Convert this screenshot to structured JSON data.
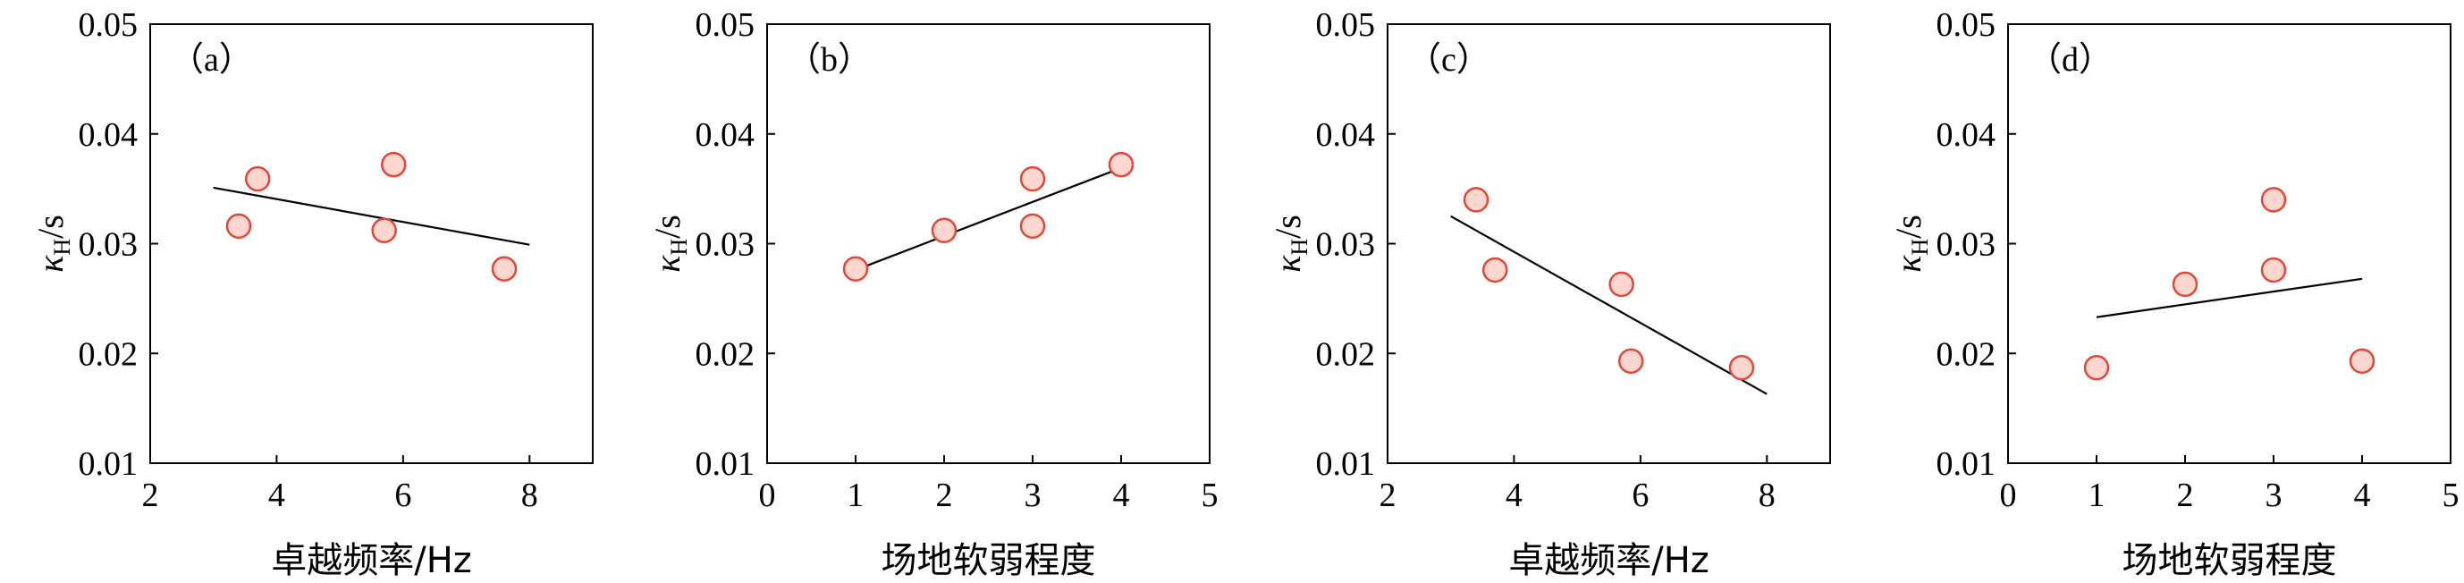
{
  "chart_data": [
    {
      "type": "scatter",
      "panel_label": "（a）",
      "xlabel": "卓越频率/Hz",
      "ylabel": {
        "symbol": "κ",
        "sub": "H",
        "unit": "/s"
      },
      "xlim": [
        2,
        9
      ],
      "ylim": [
        0.01,
        0.05
      ],
      "xticks": [
        2,
        4,
        6,
        8
      ],
      "xtick_labels": [
        "2",
        "4",
        "6",
        "8"
      ],
      "yticks": [
        0.01,
        0.02,
        0.03,
        0.04,
        0.05
      ],
      "ytick_labels": [
        "0.01",
        "0.02",
        "0.03",
        "0.04",
        "0.05"
      ],
      "points": [
        {
          "x": 3.4,
          "y": 0.0316
        },
        {
          "x": 3.7,
          "y": 0.0359
        },
        {
          "x": 5.7,
          "y": 0.0312
        },
        {
          "x": 5.85,
          "y": 0.0372
        },
        {
          "x": 7.6,
          "y": 0.0277
        }
      ],
      "fit_line": {
        "x": [
          3,
          8
        ],
        "y": [
          0.0351,
          0.0299
        ]
      }
    },
    {
      "type": "scatter",
      "panel_label": "（b）",
      "xlabel": "场地软弱程度",
      "ylabel": {
        "symbol": "κ",
        "sub": "H",
        "unit": "/s"
      },
      "xlim": [
        0,
        5
      ],
      "ylim": [
        0.01,
        0.05
      ],
      "xticks": [
        0,
        1,
        2,
        3,
        4,
        5
      ],
      "xtick_labels": [
        "0",
        "1",
        "2",
        "3",
        "4",
        "5"
      ],
      "yticks": [
        0.01,
        0.02,
        0.03,
        0.04,
        0.05
      ],
      "ytick_labels": [
        "0.01",
        "0.02",
        "0.03",
        "0.04",
        "0.05"
      ],
      "points": [
        {
          "x": 1,
          "y": 0.0277
        },
        {
          "x": 2,
          "y": 0.0312
        },
        {
          "x": 3,
          "y": 0.0316
        },
        {
          "x": 3,
          "y": 0.0359
        },
        {
          "x": 4,
          "y": 0.0372
        }
      ],
      "fit_line": {
        "x": [
          1,
          4
        ],
        "y": [
          0.0276,
          0.0369
        ]
      }
    },
    {
      "type": "scatter",
      "panel_label": "（c）",
      "xlabel": "卓越频率/Hz",
      "ylabel": {
        "symbol": "κ",
        "sub": "H",
        "unit": "/s"
      },
      "xlim": [
        2,
        9
      ],
      "ylim": [
        0.01,
        0.05
      ],
      "xticks": [
        2,
        4,
        6,
        8
      ],
      "xtick_labels": [
        "2",
        "4",
        "6",
        "8"
      ],
      "yticks": [
        0.01,
        0.02,
        0.03,
        0.04,
        0.05
      ],
      "ytick_labels": [
        "0.01",
        "0.02",
        "0.03",
        "0.04",
        "0.05"
      ],
      "points": [
        {
          "x": 3.4,
          "y": 0.034
        },
        {
          "x": 3.7,
          "y": 0.0276
        },
        {
          "x": 5.7,
          "y": 0.0263
        },
        {
          "x": 5.85,
          "y": 0.0193
        },
        {
          "x": 7.6,
          "y": 0.0187
        }
      ],
      "fit_line": {
        "x": [
          3,
          8
        ],
        "y": [
          0.0325,
          0.0163
        ]
      }
    },
    {
      "type": "scatter",
      "panel_label": "（d）",
      "xlabel": "场地软弱程度",
      "ylabel": {
        "symbol": "κ",
        "sub": "H",
        "unit": "/s"
      },
      "xlim": [
        0,
        5
      ],
      "ylim": [
        0.01,
        0.05
      ],
      "xticks": [
        0,
        1,
        2,
        3,
        4,
        5
      ],
      "xtick_labels": [
        "0",
        "1",
        "2",
        "3",
        "4",
        "5"
      ],
      "yticks": [
        0.01,
        0.02,
        0.03,
        0.04,
        0.05
      ],
      "ytick_labels": [
        "0.01",
        "0.02",
        "0.03",
        "0.04",
        "0.05"
      ],
      "points": [
        {
          "x": 1,
          "y": 0.0187
        },
        {
          "x": 2,
          "y": 0.0263
        },
        {
          "x": 3,
          "y": 0.0276
        },
        {
          "x": 3,
          "y": 0.034
        },
        {
          "x": 4,
          "y": 0.0193
        }
      ],
      "fit_line": {
        "x": [
          1,
          4
        ],
        "y": [
          0.0233,
          0.0268
        ]
      }
    }
  ],
  "colors": {
    "marker_fill": "#fcd6cf",
    "marker_stroke": "#e0483a",
    "line": "#000000",
    "axis": "#000000"
  }
}
